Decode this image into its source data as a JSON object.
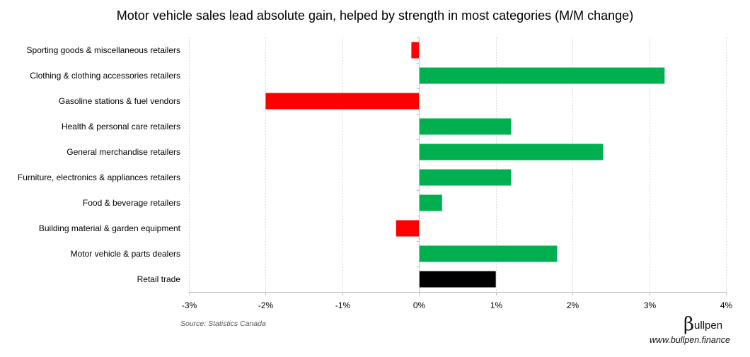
{
  "chart_data": {
    "type": "bar",
    "orientation": "horizontal",
    "title": "Motor vehicle sales lead absolute gain, helped by strength in most categories (M/M change)",
    "xlabel": "",
    "ylabel": "",
    "xlim": [
      -3,
      4
    ],
    "xticks": [
      -3,
      -2,
      -1,
      0,
      1,
      2,
      3,
      4
    ],
    "xtick_labels": [
      "-3%",
      "-2%",
      "-1%",
      "0%",
      "1%",
      "2%",
      "3%",
      "4%"
    ],
    "grid": true,
    "legend": "none",
    "categories": [
      "Sporting goods & miscellaneous retailers",
      "Clothing & clothing accessories retailers",
      "Gasoline stations & fuel vendors",
      "Health & personal care retailers",
      "General merchandise retailers",
      "Furniture, electronics & appliances retailers",
      "Food & beverage retailers",
      "Building material &  garden equipment",
      "Motor vehicle & parts dealers",
      "Retail trade"
    ],
    "values": [
      -0.1,
      3.2,
      -2.0,
      1.2,
      2.4,
      1.2,
      0.3,
      -0.3,
      1.8,
      1.0
    ],
    "colors": {
      "positive": "#00B050",
      "negative": "#FF0000",
      "total": "#000000"
    },
    "total_category": "Retail trade"
  },
  "footer": {
    "source": "Source: Statistics Canada",
    "brand_mark": "β",
    "brand_name": "ullpen",
    "url": "www.bullpen.finance"
  }
}
